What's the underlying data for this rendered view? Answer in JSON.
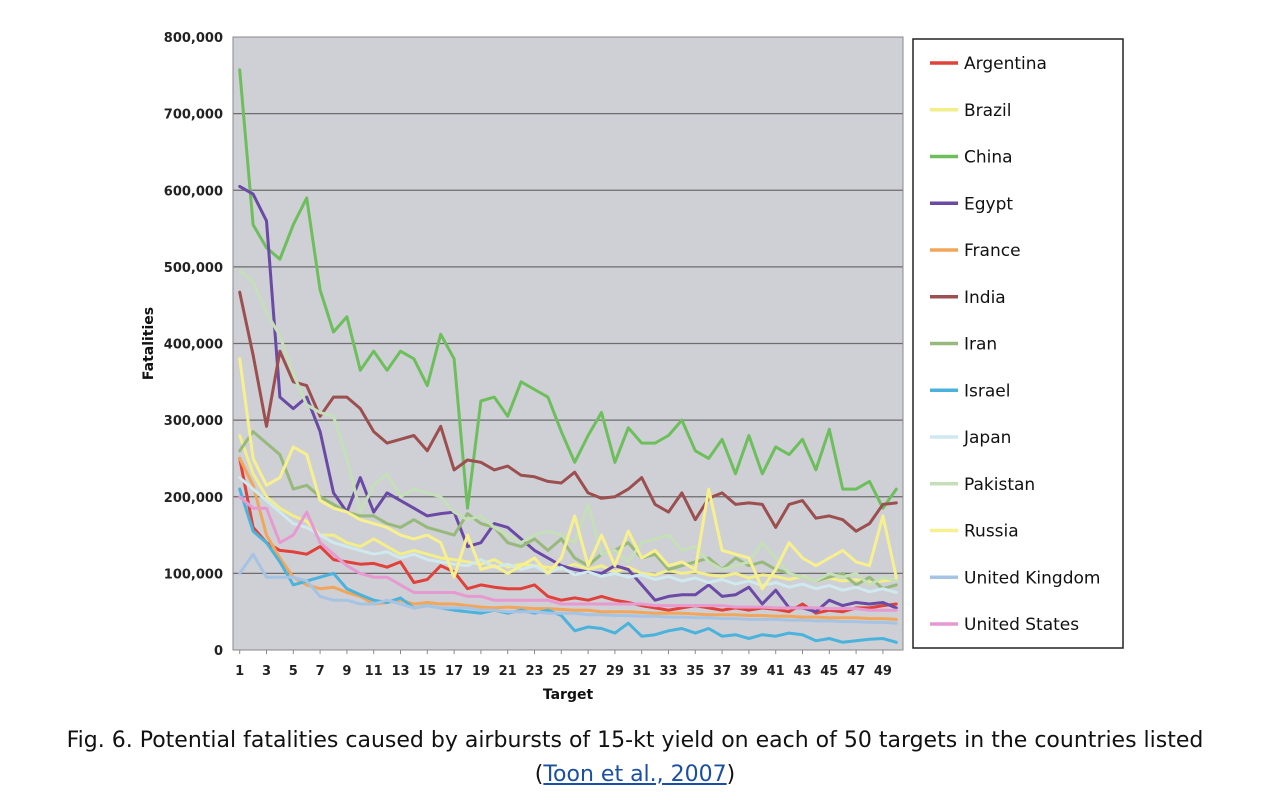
{
  "chart_data": {
    "type": "line",
    "xlabel": "Target",
    "ylabel": "Fatalities",
    "ylim": [
      0,
      800000
    ],
    "yticks": [
      "0",
      "100,000",
      "200,000",
      "300,000",
      "400,000",
      "500,000",
      "600,000",
      "700,000",
      "800,000"
    ],
    "xticks": [
      "1",
      "3",
      "5",
      "7",
      "9",
      "11",
      "13",
      "15",
      "17",
      "19",
      "21",
      "23",
      "25",
      "27",
      "29",
      "31",
      "33",
      "35",
      "37",
      "39",
      "41",
      "43",
      "45",
      "47",
      "49"
    ],
    "grid": "horizontal",
    "legend_position": "right",
    "x": [
      1,
      2,
      3,
      4,
      5,
      6,
      7,
      8,
      9,
      10,
      11,
      12,
      13,
      14,
      15,
      16,
      17,
      18,
      19,
      20,
      21,
      22,
      23,
      24,
      25,
      26,
      27,
      28,
      29,
      30,
      31,
      32,
      33,
      34,
      35,
      36,
      37,
      38,
      39,
      40,
      41,
      42,
      43,
      44,
      45,
      46,
      47,
      48,
      49,
      50
    ],
    "series": [
      {
        "name": "Argentina",
        "color": "#e0413a",
        "values": [
          250000,
          160000,
          140000,
          130000,
          128000,
          125000,
          135000,
          118000,
          115000,
          112000,
          113000,
          108000,
          115000,
          88000,
          92000,
          110000,
          102000,
          80000,
          85000,
          82000,
          80000,
          80000,
          85000,
          70000,
          65000,
          68000,
          65000,
          70000,
          65000,
          62000,
          58000,
          55000,
          52000,
          55000,
          58000,
          55000,
          52000,
          55000,
          52000,
          55000,
          53000,
          50000,
          60000,
          48000,
          52000,
          50000,
          55000,
          55000,
          58000,
          60000
        ]
      },
      {
        "name": "Brazil",
        "color": "#f2ee8a",
        "values": [
          280000,
          230000,
          200000,
          185000,
          175000,
          168000,
          150000,
          150000,
          140000,
          135000,
          145000,
          135000,
          125000,
          130000,
          125000,
          120000,
          118000,
          115000,
          112000,
          118000,
          108000,
          112000,
          110000,
          108000,
          106000,
          112000,
          105000,
          110000,
          102000,
          108000,
          100000,
          98000,
          104000,
          100000,
          102000,
          98000,
          96000,
          100000,
          94000,
          98000,
          96000,
          92000,
          96000,
          90000,
          94000,
          90000,
          92000,
          88000,
          90000,
          92000
        ]
      },
      {
        "name": "China",
        "color": "#6dbf5b",
        "values": [
          757000,
          555000,
          525000,
          510000,
          555000,
          590000,
          470000,
          415000,
          435000,
          365000,
          390000,
          365000,
          390000,
          380000,
          345000,
          412000,
          380000,
          185000,
          325000,
          330000,
          305000,
          350000,
          340000,
          330000,
          285000,
          245000,
          280000,
          310000,
          245000,
          290000,
          270000,
          270000,
          280000,
          300000,
          260000,
          250000,
          275000,
          230000,
          280000,
          230000,
          265000,
          255000,
          275000,
          235000,
          288000,
          210000,
          210000,
          220000,
          185000,
          210000
        ]
      },
      {
        "name": "Egypt",
        "color": "#6a4aa5",
        "values": [
          605000,
          595000,
          560000,
          330000,
          315000,
          330000,
          285000,
          205000,
          180000,
          225000,
          180000,
          205000,
          195000,
          185000,
          175000,
          178000,
          180000,
          135000,
          140000,
          165000,
          160000,
          145000,
          130000,
          120000,
          110000,
          105000,
          102000,
          100000,
          110000,
          105000,
          85000,
          65000,
          70000,
          72000,
          72000,
          85000,
          70000,
          72000,
          82000,
          60000,
          78000,
          55000,
          55000,
          50000,
          65000,
          58000,
          62000,
          60000,
          62000,
          55000
        ]
      },
      {
        "name": "France",
        "color": "#f2a65a",
        "values": [
          250000,
          215000,
          150000,
          120000,
          95000,
          85000,
          80000,
          82000,
          75000,
          70000,
          60000,
          62000,
          65000,
          60000,
          62000,
          60000,
          60000,
          58000,
          56000,
          55000,
          56000,
          55000,
          54000,
          54000,
          53000,
          52000,
          52000,
          50000,
          50000,
          50000,
          49000,
          48000,
          48000,
          48000,
          47000,
          46000,
          46000,
          46000,
          45000,
          45000,
          44000,
          44000,
          43000,
          43000,
          42000,
          42000,
          42000,
          41000,
          41000,
          40000
        ]
      },
      {
        "name": "India",
        "color": "#9b4f4f",
        "values": [
          467000,
          385000,
          292000,
          390000,
          350000,
          345000,
          305000,
          330000,
          330000,
          315000,
          285000,
          270000,
          275000,
          280000,
          260000,
          292000,
          235000,
          248000,
          245000,
          235000,
          240000,
          228000,
          226000,
          220000,
          218000,
          232000,
          205000,
          198000,
          200000,
          210000,
          225000,
          190000,
          180000,
          205000,
          170000,
          198000,
          205000,
          190000,
          192000,
          190000,
          160000,
          190000,
          195000,
          172000,
          175000,
          170000,
          155000,
          165000,
          190000,
          192000
        ]
      },
      {
        "name": "Iran",
        "color": "#97b97b",
        "values": [
          260000,
          285000,
          270000,
          255000,
          210000,
          215000,
          200000,
          190000,
          180000,
          175000,
          175000,
          165000,
          160000,
          170000,
          160000,
          155000,
          150000,
          178000,
          165000,
          160000,
          140000,
          135000,
          145000,
          130000,
          145000,
          120000,
          110000,
          125000,
          130000,
          140000,
          120000,
          125000,
          105000,
          110000,
          115000,
          120000,
          105000,
          120000,
          110000,
          115000,
          105000,
          100000,
          95000,
          90000,
          95000,
          100000,
          85000,
          95000,
          80000,
          85000
        ]
      },
      {
        "name": "Israel",
        "color": "#4ab3dc",
        "values": [
          210000,
          155000,
          140000,
          115000,
          85000,
          90000,
          95000,
          100000,
          80000,
          72000,
          65000,
          62000,
          68000,
          55000,
          58000,
          55000,
          52000,
          50000,
          48000,
          52000,
          48000,
          52000,
          48000,
          52000,
          45000,
          25000,
          30000,
          28000,
          22000,
          35000,
          18000,
          20000,
          25000,
          28000,
          22000,
          28000,
          18000,
          20000,
          15000,
          20000,
          18000,
          22000,
          20000,
          12000,
          15000,
          10000,
          12000,
          14000,
          15000,
          10000
        ]
      },
      {
        "name": "Japan",
        "color": "#cfe9ef",
        "values": [
          225000,
          210000,
          195000,
          180000,
          165000,
          160000,
          150000,
          140000,
          135000,
          130000,
          125000,
          128000,
          120000,
          125000,
          118000,
          115000,
          112000,
          110000,
          118000,
          108000,
          112000,
          105000,
          110000,
          100000,
          108000,
          98000,
          102000,
          96000,
          100000,
          95000,
          98000,
          92000,
          96000,
          90000,
          94000,
          88000,
          92000,
          86000,
          90000,
          84000,
          88000,
          82000,
          86000,
          80000,
          84000,
          78000,
          82000,
          76000,
          80000,
          75000
        ]
      },
      {
        "name": "Pakistan",
        "color": "#c5dfb8",
        "values": [
          495000,
          480000,
          440000,
          410000,
          360000,
          320000,
          310000,
          305000,
          250000,
          180000,
          215000,
          230000,
          200000,
          210000,
          205000,
          200000,
          180000,
          170000,
          175000,
          160000,
          150000,
          140000,
          150000,
          155000,
          150000,
          140000,
          190000,
          125000,
          130000,
          115000,
          140000,
          145000,
          150000,
          130000,
          135000,
          115000,
          105000,
          110000,
          115000,
          140000,
          120000,
          100000,
          95000,
          90000,
          100000,
          95000,
          100000,
          85000,
          95000,
          90000
        ]
      },
      {
        "name": "Russia",
        "color": "#f7f08f",
        "values": [
          380000,
          250000,
          215000,
          225000,
          265000,
          255000,
          195000,
          185000,
          180000,
          170000,
          165000,
          160000,
          150000,
          145000,
          150000,
          140000,
          95000,
          150000,
          105000,
          110000,
          100000,
          110000,
          120000,
          100000,
          120000,
          175000,
          110000,
          150000,
          110000,
          155000,
          120000,
          130000,
          110000,
          115000,
          105000,
          210000,
          130000,
          125000,
          120000,
          80000,
          105000,
          140000,
          120000,
          110000,
          120000,
          130000,
          115000,
          110000,
          175000,
          95000
        ]
      },
      {
        "name": "United Kingdom",
        "color": "#a5c4e4",
        "values": [
          100000,
          125000,
          95000,
          95000,
          95000,
          90000,
          70000,
          65000,
          65000,
          60000,
          60000,
          65000,
          60000,
          55000,
          58000,
          55000,
          55000,
          55000,
          52000,
          52000,
          50000,
          50000,
          50000,
          48000,
          48000,
          48000,
          46000,
          46000,
          45000,
          45000,
          44000,
          44000,
          43000,
          43000,
          42000,
          42000,
          41000,
          41000,
          40000,
          40000,
          40000,
          39000,
          39000,
          38000,
          38000,
          37000,
          37000,
          36000,
          36000,
          35000
        ]
      },
      {
        "name": "United States",
        "color": "#e79ad0",
        "values": [
          200000,
          185000,
          185000,
          140000,
          150000,
          180000,
          140000,
          125000,
          110000,
          100000,
          95000,
          95000,
          85000,
          75000,
          75000,
          75000,
          75000,
          70000,
          70000,
          65000,
          65000,
          65000,
          65000,
          65000,
          60000,
          60000,
          60000,
          60000,
          60000,
          60000,
          60000,
          58000,
          58000,
          58000,
          58000,
          58000,
          58000,
          56000,
          56000,
          56000,
          55000,
          55000,
          55000,
          55000,
          54000,
          54000,
          54000,
          52000,
          52000,
          52000
        ]
      }
    ]
  },
  "caption": {
    "text": "Fig. 6. Potential fatalities caused by airbursts of 15-kt yield on each of 50 targets in the countries listed",
    "open_paren": "(",
    "link": "Toon et al., 2007",
    "close_paren": ")"
  }
}
